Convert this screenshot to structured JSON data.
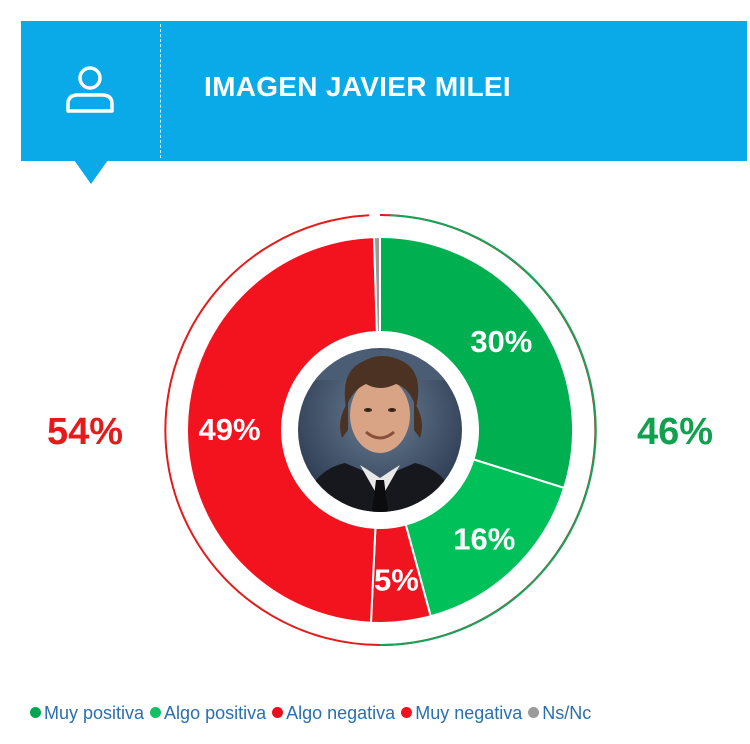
{
  "header": {
    "title": "IMAGEN JAVIER MILEI",
    "icon": "user-icon",
    "background": "#0aa9e8"
  },
  "chart_data": {
    "type": "pie",
    "categories": [
      "Muy positiva",
      "Algo positiva",
      "Algo negativa",
      "Muy negativa",
      "Ns/Nc"
    ],
    "values": [
      30,
      16,
      5,
      49,
      0.5
    ],
    "labels": [
      "30%",
      "16%",
      "5%",
      "49%",
      ""
    ],
    "colors": [
      "#00b050",
      "#00c05a",
      "#f01420",
      "#f3131f",
      "#9a9a9a"
    ],
    "totals": [
      {
        "label": "54%",
        "value": 54,
        "color": "#e31b1b"
      },
      {
        "label": "46%",
        "value": 46,
        "color": "#10a050"
      }
    ],
    "legend_position": "bottom",
    "center_image": "portrait"
  },
  "legend": [
    {
      "label": "Muy positiva",
      "color": "#00a651"
    },
    {
      "label": "Algo positiva",
      "color": "#13c063"
    },
    {
      "label": "Algo negativa",
      "color": "#e8101c"
    },
    {
      "label": "Muy negativa",
      "color": "#f0131f"
    },
    {
      "label": "Ns/Nc",
      "color": "#9a9a9a"
    }
  ]
}
